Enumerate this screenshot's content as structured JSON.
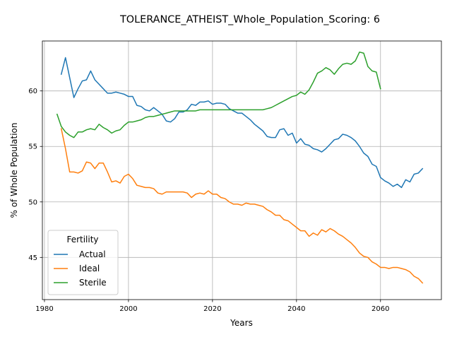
{
  "chart_data": {
    "type": "line",
    "title": "TOLERANCE_ATHEIST_Whole_Population_Scoring: 6",
    "xlabel": "Years",
    "ylabel": "% of Whole Population",
    "xlim": [
      1979.5,
      2074.5
    ],
    "ylim": [
      41.2,
      64.5
    ],
    "xticks": [
      1980,
      2000,
      2020,
      2040,
      2060
    ],
    "yticks": [
      45,
      50,
      55,
      60
    ],
    "grid": true,
    "legend": {
      "title": "Fertility",
      "position": "lower-left"
    },
    "x": [
      1983,
      1984,
      1985,
      1986,
      1987,
      1988,
      1989,
      1990,
      1991,
      1992,
      1993,
      1994,
      1995,
      1996,
      1997,
      1998,
      1999,
      2000,
      2001,
      2002,
      2003,
      2004,
      2005,
      2006,
      2007,
      2008,
      2009,
      2010,
      2011,
      2012,
      2013,
      2014,
      2015,
      2016,
      2017,
      2018,
      2019,
      2020,
      2021,
      2022,
      2023,
      2024,
      2025,
      2026,
      2027,
      2028,
      2029,
      2030,
      2031,
      2032,
      2033,
      2034,
      2035,
      2036,
      2037,
      2038,
      2039,
      2040,
      2041,
      2042,
      2043,
      2044,
      2045,
      2046,
      2047,
      2048,
      2049,
      2050,
      2051,
      2052,
      2053,
      2054,
      2055,
      2056,
      2057,
      2058,
      2059,
      2060,
      2061,
      2062,
      2063,
      2064,
      2065,
      2066,
      2067,
      2068,
      2069,
      2070
    ],
    "series": [
      {
        "name": "Actual",
        "color": "#1f77b4",
        "values": [
          null,
          61.5,
          63.0,
          61.2,
          59.4,
          60.2,
          60.9,
          61.0,
          61.8,
          61.0,
          60.6,
          60.2,
          59.8,
          59.8,
          59.9,
          59.8,
          59.7,
          59.5,
          59.5,
          58.7,
          58.6,
          58.3,
          58.2,
          58.5,
          58.2,
          57.9,
          57.3,
          57.2,
          57.5,
          58.1,
          58.1,
          58.3,
          58.8,
          58.7,
          59.0,
          59.0,
          59.1,
          58.8,
          58.9,
          58.9,
          58.8,
          58.4,
          58.2,
          58.0,
          58.0,
          57.7,
          57.4,
          57.0,
          56.7,
          56.4,
          55.9,
          55.8,
          55.8,
          56.5,
          56.6,
          56.0,
          56.2,
          55.3,
          55.7,
          55.2,
          55.1,
          54.8,
          54.7,
          54.5,
          54.8,
          55.2,
          55.6,
          55.7,
          56.1,
          56.0,
          55.8,
          55.5,
          55.0,
          54.4,
          54.1,
          53.4,
          53.2,
          52.2,
          51.9,
          51.7,
          51.4,
          51.6,
          51.3,
          52.0,
          51.8,
          52.5,
          52.6,
          53.0
        ]
      },
      {
        "name": "Ideal",
        "color": "#ff7f0e",
        "values": [
          null,
          56.6,
          54.8,
          52.7,
          52.7,
          52.6,
          52.8,
          53.6,
          53.5,
          53.0,
          53.5,
          53.5,
          52.7,
          51.8,
          51.9,
          51.7,
          52.3,
          52.5,
          52.1,
          51.5,
          51.4,
          51.3,
          51.3,
          51.2,
          50.8,
          50.7,
          50.9,
          50.9,
          50.9,
          50.9,
          50.9,
          50.8,
          50.4,
          50.7,
          50.8,
          50.7,
          51.0,
          50.7,
          50.7,
          50.4,
          50.3,
          50.0,
          49.8,
          49.8,
          49.7,
          49.9,
          49.8,
          49.8,
          49.7,
          49.6,
          49.3,
          49.1,
          48.8,
          48.8,
          48.4,
          48.3,
          48.0,
          47.7,
          47.4,
          47.4,
          46.9,
          47.2,
          47.0,
          47.5,
          47.3,
          47.6,
          47.4,
          47.1,
          46.9,
          46.6,
          46.3,
          45.9,
          45.4,
          45.1,
          45.0,
          44.6,
          44.4,
          44.1,
          44.1,
          44.0,
          44.1,
          44.1,
          44.0,
          43.9,
          43.7,
          43.3,
          43.1,
          42.7
        ]
      },
      {
        "name": "Sterile",
        "color": "#2ca02c",
        "values": [
          57.9,
          56.8,
          56.3,
          56.0,
          55.8,
          56.3,
          56.3,
          56.5,
          56.6,
          56.5,
          57.0,
          56.7,
          56.5,
          56.2,
          56.4,
          56.5,
          56.9,
          57.2,
          57.2,
          57.3,
          57.4,
          57.6,
          57.7,
          57.7,
          57.8,
          57.9,
          58.0,
          58.1,
          58.2,
          58.2,
          58.2,
          58.2,
          58.2,
          58.2,
          58.3,
          58.3,
          58.3,
          58.3,
          58.3,
          58.3,
          58.3,
          58.3,
          58.3,
          58.3,
          58.3,
          58.3,
          58.3,
          58.3,
          58.3,
          58.3,
          58.4,
          58.5,
          58.7,
          58.9,
          59.1,
          59.3,
          59.5,
          59.6,
          59.9,
          59.7,
          60.1,
          60.8,
          61.6,
          61.8,
          62.1,
          61.9,
          61.5,
          62.0,
          62.4,
          62.5,
          62.4,
          62.7,
          63.5,
          63.4,
          62.2,
          61.8,
          61.7,
          60.2,
          null,
          null,
          null,
          null,
          null,
          null,
          null,
          null,
          null,
          null
        ]
      }
    ]
  }
}
